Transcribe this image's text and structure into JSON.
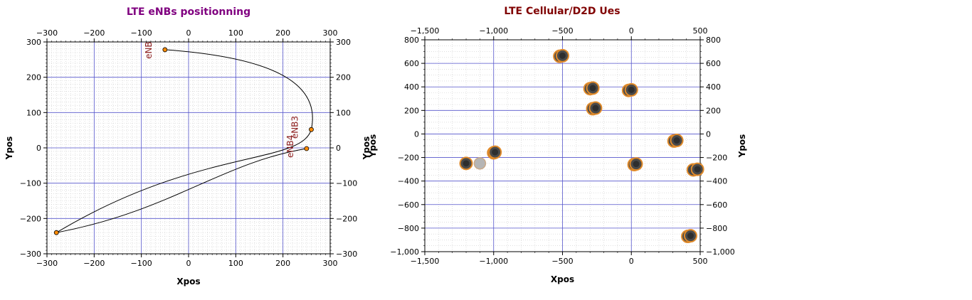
{
  "chart_data": [
    {
      "type": "scatter",
      "title": "LTE eNBs positionning",
      "title_color": "#800080",
      "xlabel": "Xpos",
      "ylabel": "Ypos",
      "xlim": [
        -300,
        300
      ],
      "ylim": [
        -300,
        300
      ],
      "xticks": [
        -300,
        -200,
        -100,
        0,
        100,
        200,
        300
      ],
      "yticks": [
        -300,
        -200,
        -100,
        0,
        100,
        200,
        300
      ],
      "xtick_labels": [
        "−300",
        "−200",
        "−100",
        "0",
        "100",
        "200",
        "300"
      ],
      "ytick_labels": [
        "−300",
        "−200",
        "−100",
        "0",
        "100",
        "200",
        "300"
      ],
      "grid": true,
      "points": [
        {
          "x": -50,
          "y": 278,
          "label": "eNB"
        },
        {
          "x": 260,
          "y": 52,
          "label": "eNB3"
        },
        {
          "x": 250,
          "y": -2,
          "label": "eNB4"
        },
        {
          "x": -280,
          "y": -240,
          "label": ""
        }
      ],
      "point_color": "#ff8c00",
      "label_color": "#8b1a1a"
    },
    {
      "type": "scatter",
      "title": "LTE Cellular/D2D Ues",
      "title_color": "#800000",
      "xlabel": "Xpos",
      "ylabel": "Ypos",
      "xlim": [
        -1500,
        500
      ],
      "ylim": [
        -1000,
        800
      ],
      "xticks": [
        -1500,
        -1000,
        -500,
        0,
        500
      ],
      "yticks": [
        -1000,
        -800,
        -600,
        -400,
        -200,
        0,
        200,
        400,
        600,
        800
      ],
      "xtick_labels": [
        "−1,500",
        "−1,000",
        "−500",
        "0",
        "500"
      ],
      "ytick_labels": [
        "−1,000",
        "−800",
        "−600",
        "−400",
        "−200",
        "0",
        "200",
        "400",
        "600",
        "800"
      ],
      "grid": true,
      "points": [
        {
          "x": -520,
          "y": 660
        },
        {
          "x": -500,
          "y": 665
        },
        {
          "x": -300,
          "y": 385
        },
        {
          "x": -280,
          "y": 390
        },
        {
          "x": -280,
          "y": 215
        },
        {
          "x": -260,
          "y": 220
        },
        {
          "x": -20,
          "y": 370
        },
        {
          "x": 0,
          "y": 375
        },
        {
          "x": 310,
          "y": -60
        },
        {
          "x": 330,
          "y": -55
        },
        {
          "x": -1000,
          "y": -160
        },
        {
          "x": -990,
          "y": -155
        },
        {
          "x": -1200,
          "y": -250
        },
        {
          "x": 20,
          "y": -260
        },
        {
          "x": 35,
          "y": -255
        },
        {
          "x": 450,
          "y": -305
        },
        {
          "x": 480,
          "y": -300
        },
        {
          "x": 410,
          "y": -870
        },
        {
          "x": 430,
          "y": -865
        }
      ],
      "gray_points": [
        {
          "x": -1100,
          "y": -250
        }
      ]
    }
  ]
}
